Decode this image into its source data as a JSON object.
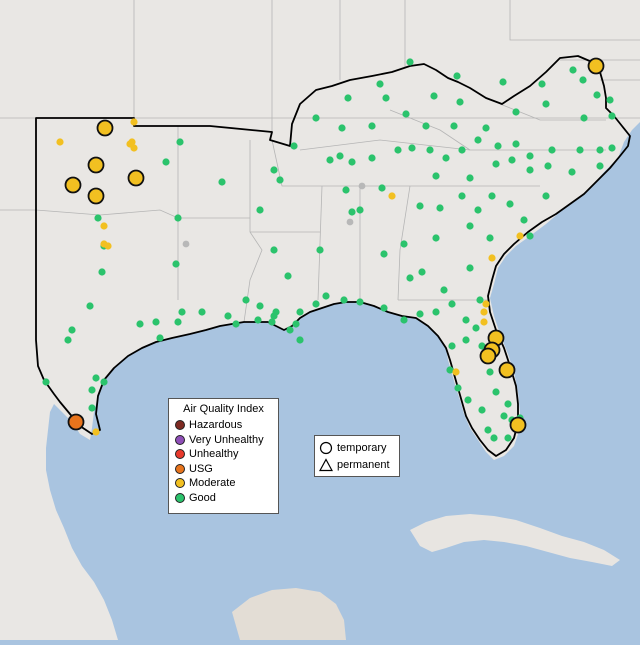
{
  "colors": {
    "ocean": "#a9c4e0",
    "land": "#e9e7e4",
    "land_south": "#e3ddd5",
    "cuba": "#e8e5e1",
    "state_border": "#b5b5b5",
    "highlight_border": "#000000"
  },
  "legend": {
    "title": "Air Quality Index",
    "categories": [
      {
        "label": "Hazardous",
        "color": "#7e2a22"
      },
      {
        "label": "Very Unhealthy",
        "color": "#8f4fb8"
      },
      {
        "label": "Unhealthy",
        "color": "#e8392c"
      },
      {
        "label": "USG",
        "color": "#e8741c"
      },
      {
        "label": "Moderate",
        "color": "#f2c021"
      },
      {
        "label": "Good",
        "color": "#2bc36c"
      }
    ]
  },
  "monitor_types": {
    "temporary": {
      "label": "temporary",
      "icon": "circle-icon"
    },
    "permanent": {
      "label": "permanent",
      "icon": "triangle-icon"
    }
  },
  "unclassified_color": "#b8b8b8"
}
